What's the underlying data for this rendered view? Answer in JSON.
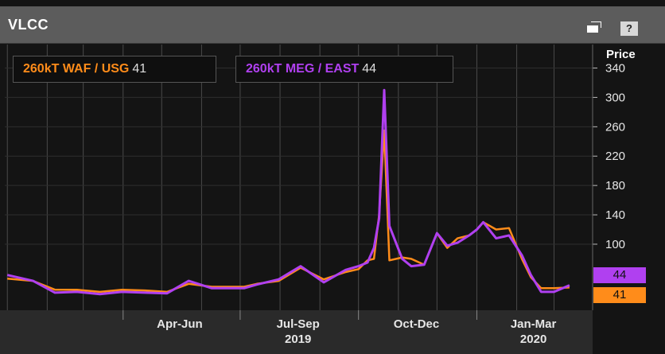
{
  "panel": {
    "title": "VLCC",
    "price_label": "Price"
  },
  "icons": {
    "restore": "restore-window-icon",
    "help": "?"
  },
  "colors": {
    "waf": "#ff8c1a",
    "meg": "#b040f0",
    "grid": "#4a4a4a",
    "axis_text": "#e6e6e6"
  },
  "chart_data": {
    "type": "line",
    "x": [
      "2019-01-01",
      "2019-01-21",
      "2019-02-07",
      "2019-02-24",
      "2019-03-14",
      "2019-03-31",
      "2019-04-18",
      "2019-05-05",
      "2019-05-22",
      "2019-06-09",
      "2019-06-26",
      "2019-07-04",
      "2019-07-14",
      "2019-07-31",
      "2019-08-17",
      "2019-09-04",
      "2019-09-21",
      "2019-10-01",
      "2019-10-08",
      "2019-10-13",
      "2019-10-17",
      "2019-10-21",
      "2019-10-25",
      "2019-11-04",
      "2019-11-11",
      "2019-11-21",
      "2019-12-01",
      "2019-12-09",
      "2019-12-17",
      "2019-12-26",
      "2020-01-01",
      "2020-01-06",
      "2020-01-16",
      "2020-01-26",
      "2020-02-05",
      "2020-02-12",
      "2020-02-20",
      "2020-03-01",
      "2020-03-13"
    ],
    "series": [
      {
        "name": "260kT WAF / USG",
        "values": [
          53,
          50,
          38,
          38,
          35,
          38,
          37,
          35,
          46,
          42,
          42,
          42,
          46,
          50,
          68,
          52,
          62,
          66,
          78,
          80,
          140,
          255,
          78,
          82,
          80,
          72,
          115,
          95,
          108,
          112,
          120,
          130,
          120,
          122,
          80,
          55,
          40,
          40,
          41
        ]
      },
      {
        "name": "260kT MEG / EAST",
        "values": [
          58,
          50,
          34,
          35,
          32,
          35,
          34,
          33,
          50,
          40,
          40,
          40,
          45,
          52,
          70,
          48,
          65,
          70,
          75,
          95,
          135,
          310,
          125,
          80,
          70,
          72,
          115,
          98,
          102,
          112,
          120,
          130,
          108,
          112,
          85,
          58,
          35,
          35,
          44
        ]
      }
    ],
    "last_values": [
      41,
      44
    ],
    "y_ticks": [
      100,
      140,
      180,
      220,
      260,
      300,
      340
    ],
    "ylim": [
      10,
      372
    ],
    "xlim": [
      "2018-12-30",
      "2020-03-31"
    ],
    "x_ticks": [
      {
        "label": "Apr-Jun",
        "date": "2019-05-15"
      },
      {
        "label": "Jul-Sep",
        "date": "2019-08-15"
      },
      {
        "label": "Oct-Dec",
        "date": "2019-11-15"
      },
      {
        "label": "Jan-Mar",
        "date": "2020-02-14"
      }
    ],
    "year_labels": [
      {
        "label": "2019",
        "date": "2019-08-15"
      },
      {
        "label": "2020",
        "date": "2020-02-14"
      }
    ],
    "quarter_boundaries": [
      "2019-04-01",
      "2019-07-01",
      "2019-10-01",
      "2020-01-01"
    ],
    "grid": true,
    "legend": "top-left"
  }
}
